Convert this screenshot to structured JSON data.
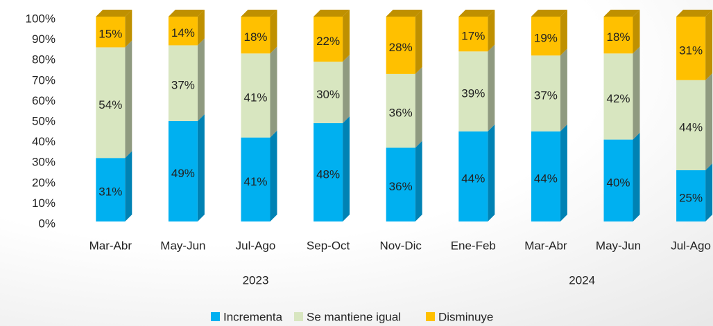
{
  "chart_data": {
    "type": "stacked-bar-3d",
    "groups": [
      {
        "label": "2023",
        "categories": [
          "Mar-Abr",
          "May-Jun",
          "Jul-Ago",
          "Sep-Oct",
          "Nov-Dic"
        ]
      },
      {
        "label": "2024",
        "categories": [
          "Ene-Feb",
          "Mar-Abr",
          "May-Jun",
          "Jul-Ago"
        ]
      }
    ],
    "series": [
      {
        "name": "Incrementa",
        "color": "#00b0f0",
        "side": "#0082b4",
        "values": [
          31,
          49,
          41,
          48,
          36,
          44,
          44,
          40,
          25
        ],
        "value_labels": [
          "31%",
          "49%",
          "41%",
          "48%",
          "36%",
          "44%",
          "44%",
          "40%",
          "25%"
        ]
      },
      {
        "name": "Se mantiene igual",
        "color": "#d8e6c0",
        "side": "#8f9a80",
        "values": [
          54,
          37,
          41,
          30,
          36,
          39,
          37,
          42,
          44
        ],
        "value_labels": [
          "54%",
          "37%",
          "41%",
          "30%",
          "36%",
          "39%",
          "37%",
          "42%",
          "44%"
        ]
      },
      {
        "name": "Disminuye",
        "color": "#ffc000",
        "side": "#bf9000",
        "values": [
          15,
          14,
          18,
          22,
          28,
          17,
          19,
          18,
          31
        ],
        "value_labels": [
          "15%",
          "14%",
          "18%",
          "22%",
          "28%",
          "17%",
          "19%",
          "18%",
          "31%"
        ]
      }
    ],
    "ylim": [
      0,
      100
    ],
    "yticks": [
      {
        "value": 0,
        "label": "0%"
      },
      {
        "value": 10,
        "label": "10%"
      },
      {
        "value": 20,
        "label": "20%"
      },
      {
        "value": 30,
        "label": "30%"
      },
      {
        "value": 40,
        "label": "40%"
      },
      {
        "value": 50,
        "label": "50%"
      },
      {
        "value": 60,
        "label": "60%"
      },
      {
        "value": 70,
        "label": "70%"
      },
      {
        "value": 80,
        "label": "80%"
      },
      {
        "value": 90,
        "label": "90%"
      },
      {
        "value": 100,
        "label": "100%"
      }
    ],
    "legend": "bottom"
  }
}
